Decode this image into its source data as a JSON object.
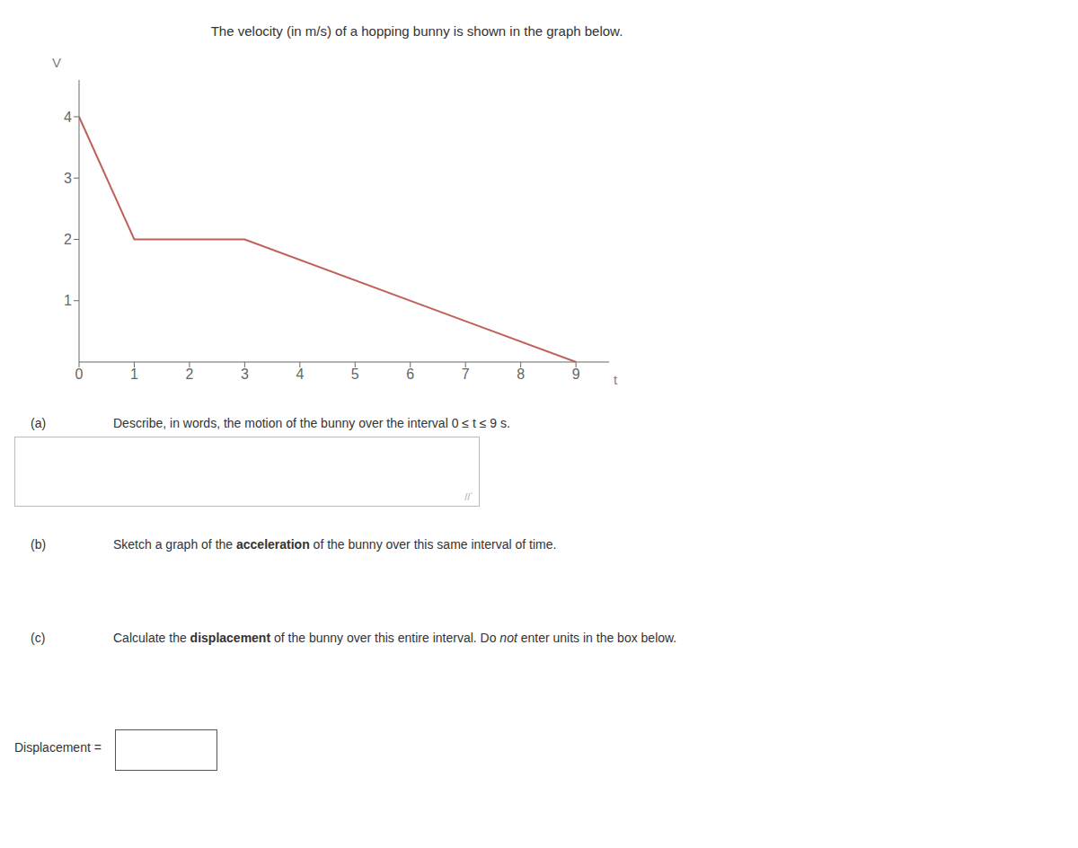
{
  "chart_data": {
    "type": "line",
    "title": "The velocity (in m/s) of a hopping bunny is shown in the graph below.",
    "x": [
      0,
      1,
      3,
      9
    ],
    "values": [
      4,
      2,
      2,
      0
    ],
    "color": "#c0605a",
    "xlabel": "t",
    "ylabel": "V",
    "xlim": [
      0,
      9.6
    ],
    "ylim": [
      0,
      4.6
    ],
    "xticks": [
      0,
      1,
      2,
      3,
      4,
      5,
      6,
      7,
      8,
      9
    ],
    "yticks": [
      1,
      2,
      3,
      4
    ],
    "grid": false,
    "annotations": [
      [
        "(a)",
        "Describe, in words, the motion of the bunny over the interval 0 ≤ t ≤ 9 s."
      ],
      [
        "//´"
      ],
      [
        "(b)",
        "Sketch a graph of the ",
        "acceleration",
        " of the bunny over this same interval of time."
      ],
      [
        "(c)",
        "Calculate the ",
        "displacement",
        " of the bunny over this entire interval. Do ",
        "not",
        " enter units in the box below."
      ],
      [
        "Displacement ="
      ]
    ]
  }
}
